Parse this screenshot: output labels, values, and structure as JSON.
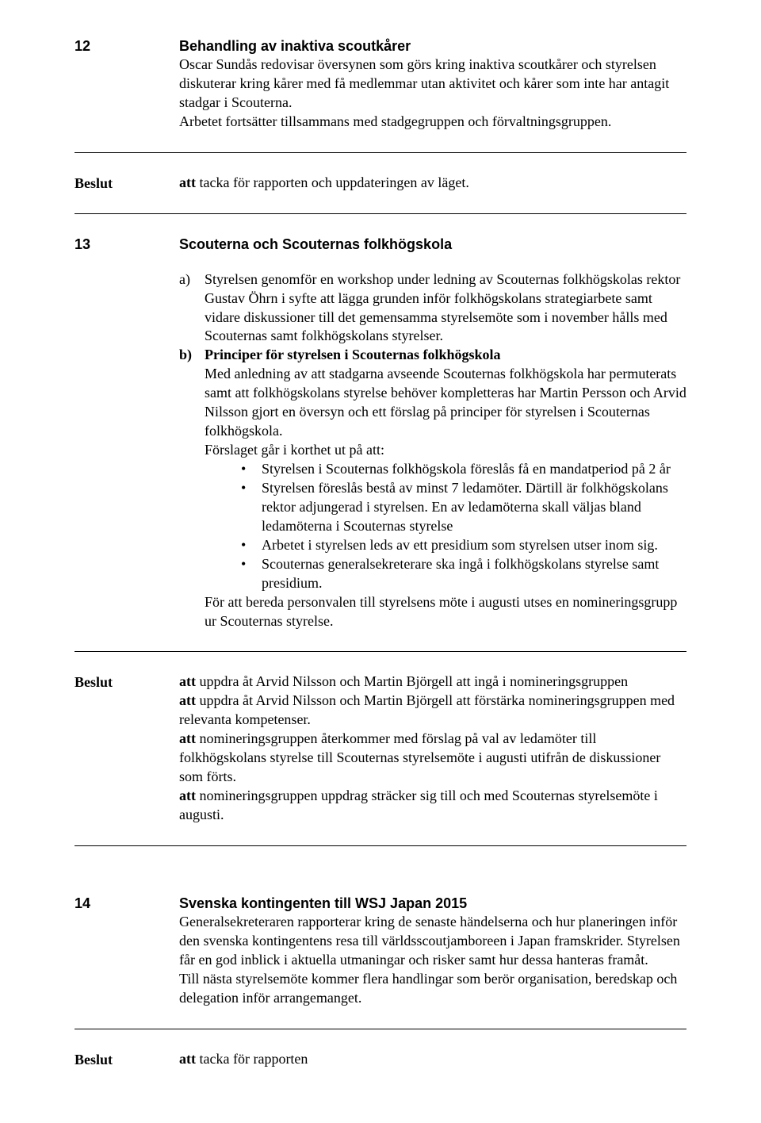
{
  "s12": {
    "num": "12",
    "title": "Behandling av inaktiva scoutkårer",
    "body": "Oscar Sundås redovisar översynen som görs kring inaktiva scoutkårer och styrelsen diskuterar kring kårer med få medlemmar utan aktivitet och kårer som inte har antagit stadgar i Scouterna.",
    "body2": "Arbetet fortsätter tillsammans med stadgegruppen och förvaltningsgruppen."
  },
  "beslut12": {
    "label": "Beslut",
    "att_prefix": "att ",
    "att_text": "tacka för rapporten och uppdateringen av läget."
  },
  "s13": {
    "num": "13",
    "title": "Scouterna och Scouternas folkhögskola",
    "a": {
      "marker": "a)",
      "text": "Styrelsen genomför en workshop under ledning av Scouternas folkhögskolas rektor Gustav Öhrn i syfte att lägga grunden inför folkhögskolans strategiarbete samt vidare diskussioner till det gemensamma styrelsemöte som i november hålls med Scouternas samt folkhögskolans styrelser."
    },
    "b": {
      "marker": "b)",
      "heading": "Principer för styrelsen i Scouternas folkhögskola",
      "p1": "Med anledning av att stadgarna avseende Scouternas folkhögskola har permuterats samt att folkhögskolans styrelse behöver kompletteras har Martin Persson och Arvid Nilsson gjort en översyn och ett förslag på principer för styrelsen i Scouternas folkhögskola.",
      "p2": "Förslaget går i korthet ut på att:",
      "bullets": [
        "Styrelsen i Scouternas folkhögskola föreslås få en mandatperiod på 2 år",
        "Styrelsen föreslås bestå av minst 7 ledamöter. Därtill är folkhögskolans rektor adjungerad i styrelsen. En av ledamöterna skall väljas bland ledamöterna i Scouternas styrelse",
        "Arbetet i styrelsen leds av ett presidium som styrelsen utser inom sig.",
        "Scouternas generalsekreterare ska ingå i folkhögskolans styrelse samt presidium."
      ],
      "p3": "För att bereda personvalen till styrelsens möte i augusti utses en nomineringsgrupp ur Scouternas styrelse."
    }
  },
  "beslut13": {
    "label": "Beslut",
    "lines": [
      {
        "att": "att ",
        "text": "uppdra åt Arvid Nilsson och Martin Björgell att ingå i nomineringsgruppen"
      },
      {
        "att": "att ",
        "text": "uppdra åt Arvid Nilsson och Martin Björgell att förstärka nomineringsgruppen med relevanta kompetenser."
      },
      {
        "att": "att ",
        "text": "nomineringsgruppen återkommer med förslag på val av ledamöter till folkhögskolans styrelse till Scouternas styrelsemöte i augusti utifrån de diskussioner som förts."
      },
      {
        "att": "att ",
        "text": "nomineringsgruppen uppdrag sträcker sig till och med Scouternas styrelsemöte i augusti."
      }
    ]
  },
  "s14": {
    "num": "14",
    "title": "Svenska kontingenten till WSJ Japan 2015",
    "body": "Generalsekreteraren rapporterar kring de senaste händelserna och hur planeringen inför den svenska kontingentens resa till världsscoutjamboreen i Japan framskrider. Styrelsen får en god inblick i aktuella utmaningar och risker samt hur dessa hanteras framåt.",
    "body2": "Till nästa styrelsemöte kommer flera handlingar som berör organisation, beredskap och delegation inför arrangemanget."
  },
  "beslut14": {
    "label": "Beslut",
    "att_prefix": "att ",
    "att_text": "tacka för rapporten"
  }
}
